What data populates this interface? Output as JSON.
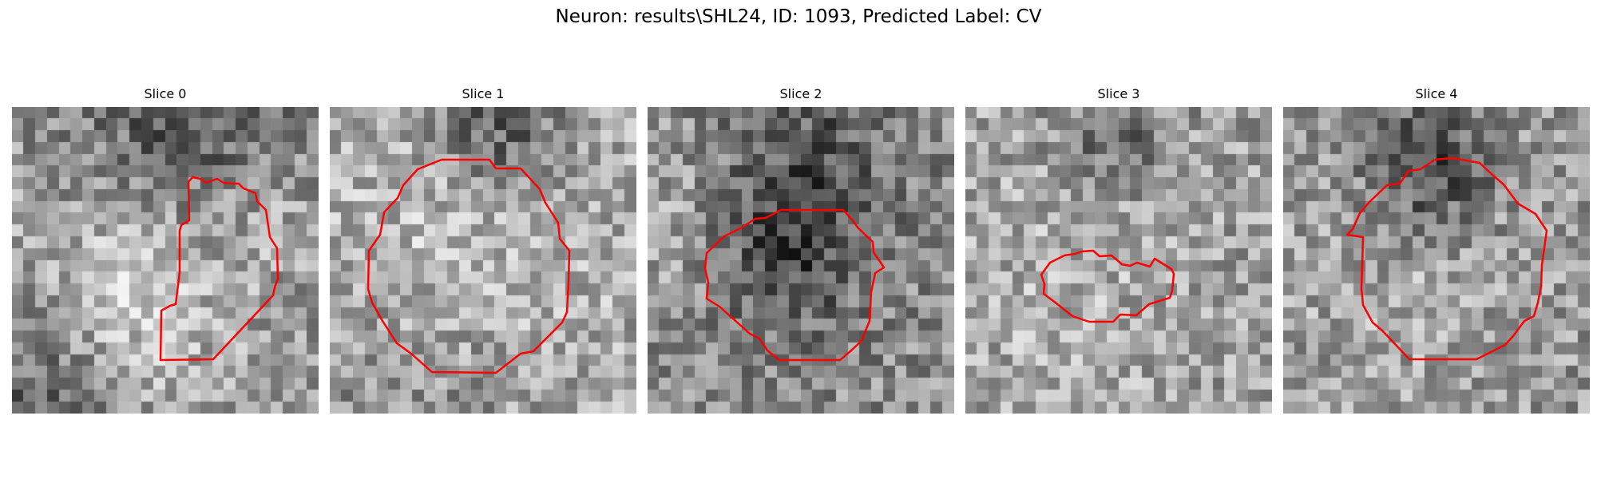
{
  "figure": {
    "title": "Neuron: results\\SHL24, ID: 1093, Predicted Label: CV"
  },
  "panels": [
    {
      "title": "Slice 0"
    },
    {
      "title": "Slice 1"
    },
    {
      "title": "Slice 2"
    },
    {
      "title": "Slice 3"
    },
    {
      "title": "Slice 4"
    }
  ],
  "style": {
    "contour_color": "#ff0000",
    "colormap": "gray"
  }
}
